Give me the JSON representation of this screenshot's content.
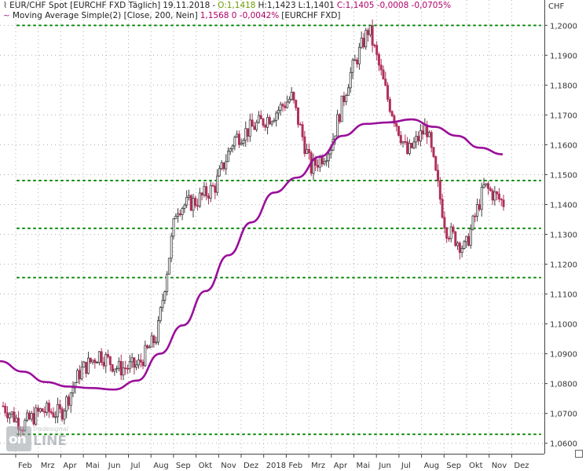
{
  "header": {
    "line1": {
      "instrument": "EUR/CHF Spot [EURCHF FXD  Täglich]",
      "date": "19.11.2018",
      "open": "O:1,1418",
      "high": "H:1,1423",
      "low": "L:1,1401",
      "close": "C:1,1405 -0,0008 -0,0705%"
    },
    "line2": {
      "indicator": "Moving Average Simple(2) [Close, 200, Nein]",
      "value": "1,1568 0 -0,0042%",
      "source": "[EURCHF FXD]"
    }
  },
  "currency_label": "CHF",
  "logo": {
    "brand_small": "tradesignal",
    "brand_box": "on",
    "brand_rest": "LINE"
  },
  "colors": {
    "candle_up": "#3d3d3d",
    "candle_down": "#b0305a",
    "ma_line": "#9a0f9a",
    "support_lines": "#0a8a0a",
    "grid": "#b0b0b0"
  },
  "chart_data": {
    "type": "line",
    "title": "EUR/CHF Spot [EURCHF FXD  Täglich]",
    "xlabel": "",
    "ylabel": "CHF",
    "ylim": [
      1.0565,
      1.2085
    ],
    "yticks": [
      "1,0600",
      "1,0700",
      "1,0800",
      "1,0900",
      "1,1000",
      "1,1100",
      "1,1200",
      "1,1300",
      "1,1400",
      "1,1500",
      "1,1600",
      "1,1700",
      "1,1800",
      "1,1900",
      "1,2000"
    ],
    "xticks": [
      "Feb",
      "Mrz",
      "Apr",
      "Mai",
      "Jun",
      "Jul",
      "Aug",
      "Sep",
      "Okt",
      "Nov",
      "Dez",
      "2018",
      "Feb",
      "Mrz",
      "Apr",
      "Mai",
      "Jun",
      "Jul",
      "Aug",
      "Sep",
      "Okt",
      "Nov",
      "Dez"
    ],
    "grid": true,
    "horizontal_lines": [
      1.2,
      1.148,
      1.132,
      1.1155,
      1.063
    ],
    "series": [
      {
        "name": "EUR/CHF Spot",
        "style": "candlestick",
        "x": [
          "Jan 17",
          "Feb 17",
          "Mrz 17",
          "Apr 17",
          "Apr 17",
          "Mai 17",
          "Mai 17",
          "Jun 17",
          "Jul 17",
          "Jul 17",
          "Aug 17",
          "Sep 17",
          "Okt 17",
          "Nov 17",
          "Dez 17",
          "Jan 18",
          "Feb 18",
          "Mrz 18",
          "Apr 18",
          "Apr 18",
          "Mai 18",
          "Jun 18",
          "Jul 18",
          "Aug 18",
          "Sep 18",
          "Okt 18",
          "Nov 18"
        ],
        "y": [
          1.0725,
          1.066,
          1.071,
          1.07,
          1.084,
          1.09,
          1.085,
          1.086,
          1.096,
          1.139,
          1.141,
          1.146,
          1.162,
          1.166,
          1.17,
          1.176,
          1.152,
          1.159,
          1.183,
          1.199,
          1.175,
          1.157,
          1.166,
          1.132,
          1.125,
          1.146,
          1.1405
        ]
      },
      {
        "name": "Moving Average Simple(2) [Close, 200, Nein]",
        "style": "line",
        "x": [
          "Jan 17",
          "Feb 17",
          "Mrz 17",
          "Apr 17",
          "Mai 17",
          "Jun 17",
          "Jul 17",
          "Aug 17",
          "Sep 17",
          "Okt 17",
          "Nov 17",
          "Dez 17",
          "Jan 18",
          "Feb 18",
          "Mrz 18",
          "Apr 18",
          "Mai 18",
          "Jun 18",
          "Jul 18",
          "Aug 18",
          "Sep 18",
          "Okt 18",
          "Nov 18"
        ],
        "y": [
          1.0875,
          1.084,
          1.0805,
          1.079,
          1.0785,
          1.078,
          1.081,
          1.09,
          1.0995,
          1.111,
          1.123,
          1.134,
          1.144,
          1.149,
          1.156,
          1.163,
          1.167,
          1.1675,
          1.1685,
          1.166,
          1.163,
          1.159,
          1.1568
        ]
      }
    ]
  }
}
